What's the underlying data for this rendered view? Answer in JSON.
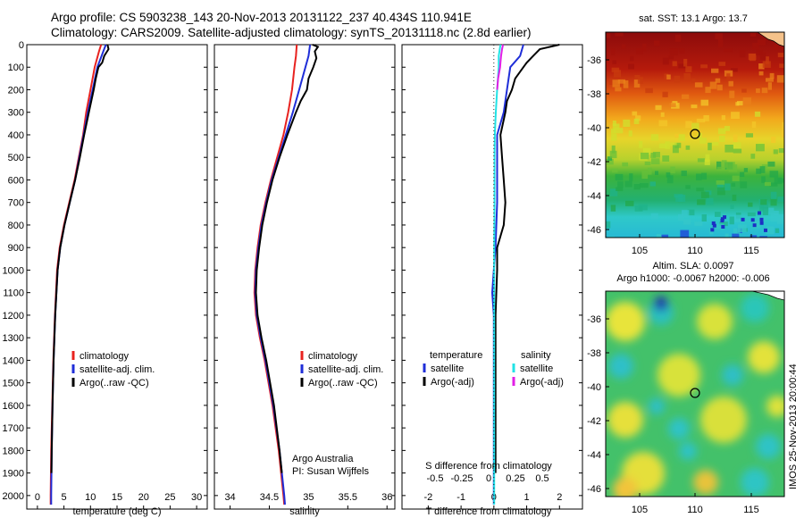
{
  "titles": {
    "line1": "Argo profile: CS 5903238_143 20-Nov-2013 20131122_237 40.434S 110.941E",
    "line2": "Climatology: CARS2009. Satellite-adjusted climatology: synTS_20131118.nc (2.8d earlier)"
  },
  "colors": {
    "climatology": "#e8221f",
    "satellite": "#1f2ed8",
    "argo": "#000000",
    "satellite_s": "#22e3e6",
    "argo_s": "#e21ee6"
  },
  "chart_data": [
    {
      "type": "line",
      "panel": "temperature",
      "xlabel": "temperature (deg C)",
      "ylabel": "",
      "xlim": [
        -2,
        32
      ],
      "ylim": [
        2060,
        0
      ],
      "xticks": [
        0,
        5,
        10,
        15,
        20,
        25,
        30
      ],
      "yticks": [
        0,
        100,
        200,
        300,
        400,
        500,
        600,
        700,
        800,
        900,
        1000,
        1100,
        1200,
        1300,
        1400,
        1500,
        1600,
        1700,
        1800,
        1900,
        2000
      ],
      "legend": [
        "climatology",
        "satellite-adj. clim.",
        "Argo(..raw -QC)"
      ],
      "legend_placement": "lower-right",
      "series": [
        {
          "name": "climatology",
          "depth": [
            0,
            30,
            100,
            200,
            300,
            400,
            500,
            600,
            700,
            800,
            900,
            1000,
            1200,
            1400,
            1600,
            1800,
            2000,
            2040
          ],
          "values": [
            12.0,
            11.6,
            10.8,
            10.0,
            9.2,
            8.6,
            7.8,
            7.0,
            6.0,
            5.0,
            4.2,
            3.7,
            3.3,
            3.0,
            2.8,
            2.6,
            2.5,
            2.5
          ]
        },
        {
          "name": "satellite-adj. clim.",
          "depth": [
            0,
            30,
            100,
            200,
            300,
            400,
            500,
            600,
            700,
            800,
            900,
            1000,
            1200,
            1400,
            1600,
            1800,
            2000,
            2040
          ],
          "values": [
            12.9,
            12.4,
            11.3,
            10.4,
            9.5,
            8.7,
            7.9,
            7.1,
            6.1,
            5.1,
            4.3,
            3.8,
            3.35,
            3.05,
            2.85,
            2.7,
            2.6,
            2.6
          ]
        },
        {
          "name": "Argo(..raw -QC)",
          "depth": [
            0,
            20,
            50,
            80,
            100,
            150,
            200,
            300,
            400,
            500,
            600,
            700,
            800,
            900,
            1000,
            1200,
            1400,
            1600,
            1800,
            1900
          ],
          "values": [
            13.2,
            13.4,
            12.6,
            12.2,
            11.5,
            11.0,
            10.6,
            9.7,
            8.8,
            8.0,
            7.1,
            6.1,
            5.1,
            4.3,
            3.8,
            3.35,
            3.05,
            2.85,
            2.7,
            2.65
          ]
        }
      ]
    },
    {
      "type": "line",
      "panel": "salinity",
      "xlabel": "salinity",
      "ylabel": "",
      "xlim": [
        33.8,
        36.1
      ],
      "ylim": [
        2060,
        0
      ],
      "xticks": [
        34,
        34.5,
        35,
        35.5,
        36
      ],
      "legend": [
        "climatology",
        "satellite-adj. clim.",
        "Argo(..raw -QC)"
      ],
      "legend_placement": "lower-right",
      "annotation": [
        "Argo Australia",
        "PI: Susan Wijffels"
      ],
      "series": [
        {
          "name": "climatology",
          "depth": [
            0,
            50,
            100,
            200,
            300,
            400,
            500,
            600,
            700,
            800,
            900,
            1000,
            1100,
            1200,
            1300,
            1400,
            1600,
            1800,
            2000,
            2040
          ],
          "values": [
            34.85,
            34.84,
            34.82,
            34.79,
            34.74,
            34.68,
            34.6,
            34.52,
            34.45,
            34.39,
            34.35,
            34.32,
            34.31,
            34.33,
            34.38,
            34.44,
            34.54,
            34.62,
            34.68,
            34.69
          ]
        },
        {
          "name": "satellite-adj. clim.",
          "depth": [
            0,
            50,
            100,
            200,
            300,
            400,
            500,
            600,
            700,
            800,
            900,
            1000,
            1100,
            1200,
            1300,
            1400,
            1600,
            1800,
            2000,
            2040
          ],
          "values": [
            35.02,
            35.0,
            34.96,
            34.88,
            34.8,
            34.71,
            34.62,
            34.53,
            34.46,
            34.4,
            34.36,
            34.33,
            34.32,
            34.34,
            34.39,
            34.45,
            34.55,
            34.63,
            34.69,
            34.7
          ]
        },
        {
          "name": "Argo(..raw -QC)",
          "depth": [
            0,
            10,
            30,
            60,
            100,
            150,
            200,
            250,
            300,
            400,
            500,
            600,
            700,
            800,
            900,
            1000,
            1100,
            1200,
            1300,
            1400,
            1600,
            1800,
            1900
          ],
          "values": [
            35.05,
            35.12,
            35.08,
            35.1,
            35.06,
            35.0,
            34.98,
            34.9,
            34.84,
            34.73,
            34.63,
            34.54,
            34.47,
            34.41,
            34.37,
            34.34,
            34.33,
            34.35,
            34.4,
            34.46,
            34.56,
            34.63,
            34.66
          ]
        }
      ]
    },
    {
      "type": "line",
      "panel": "difference",
      "xlabel": "T difference from climatology",
      "xlabel_top": "S difference from climatology",
      "ylabel": "",
      "xlim": [
        -2.8,
        2.7
      ],
      "ylim": [
        2060,
        0
      ],
      "xticks": [
        -2,
        -1,
        0,
        1,
        2
      ],
      "s_ticks": [
        "-0.5",
        "-0.25",
        "0",
        "0.25",
        "0.5"
      ],
      "legend_temperature": {
        "title": "temperature",
        "items": [
          "satellite",
          "Argo(-adj)"
        ]
      },
      "legend_salinity": {
        "title": "salinity",
        "items": [
          "satellite",
          "Argo(-adj)"
        ]
      },
      "series": [
        {
          "name": "satellite",
          "group": "temperature",
          "depth": [
            0,
            50,
            100,
            200,
            300,
            400,
            500,
            700,
            900,
            1000,
            1100,
            1200,
            1500,
            1800,
            2040
          ],
          "values": [
            0.9,
            0.8,
            0.5,
            0.4,
            0.3,
            0.1,
            0.1,
            0.1,
            0.05,
            0.0,
            -0.05,
            0.0,
            0.0,
            0.0,
            0.0
          ]
        },
        {
          "name": "Argo(-adj)",
          "group": "temperature",
          "depth": [
            0,
            20,
            50,
            80,
            100,
            150,
            200,
            250,
            300,
            400,
            500,
            600,
            700,
            800,
            900,
            1000,
            1200,
            1400,
            1600,
            1800,
            1900
          ],
          "values": [
            2.0,
            1.4,
            1.2,
            1.0,
            0.9,
            0.65,
            0.55,
            0.4,
            0.35,
            0.2,
            0.25,
            0.3,
            0.35,
            0.3,
            0.1,
            0.1,
            0.05,
            0.05,
            0.05,
            0.05,
            0.05
          ]
        },
        {
          "name": "satellite",
          "group": "salinity",
          "depth": [
            0,
            50,
            100,
            200,
            300,
            400,
            500,
            700,
            900,
            1100,
            1300,
            1600,
            2040
          ],
          "values": [
            0.2,
            0.15,
            0.15,
            0.1,
            0.06,
            0.03,
            0.02,
            0.02,
            0.01,
            0.01,
            0.01,
            0.01,
            0.01
          ]
        },
        {
          "name": "Argo(-adj)",
          "group": "salinity",
          "depth": [
            0,
            20,
            50,
            80,
            100,
            150,
            200
          ],
          "values": [
            0.28,
            0.25,
            0.22,
            0.2,
            0.19,
            0.13,
            0.1
          ]
        }
      ]
    }
  ],
  "map_sst": {
    "title": "sat. SST: 13.1 Argo: 13.7",
    "xticks": [
      "105",
      "110",
      "115"
    ],
    "yticks": [
      "-36",
      "-38",
      "-40",
      "-42",
      "-44",
      "-46"
    ]
  },
  "map_sla": {
    "title1": "Altim. SLA: 0.0097",
    "title2": "Argo h1000: -0.0067 h2000: -0.006",
    "xticks": [
      "105",
      "110",
      "115"
    ],
    "yticks": [
      "-36",
      "-38",
      "-40",
      "-42",
      "-44",
      "-46"
    ],
    "side_label": "IMOS 25-Nov-2013 20:00:44"
  }
}
